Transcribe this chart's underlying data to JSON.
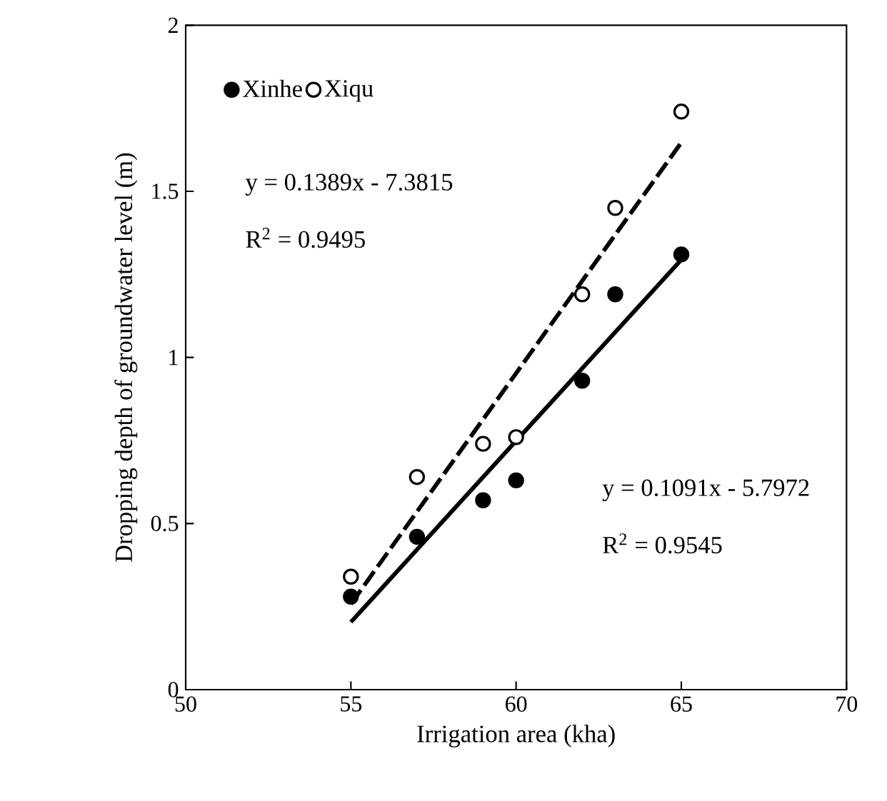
{
  "chart_data": {
    "type": "scatter",
    "xlabel": "Irrigation area (kha)",
    "ylabel": "Dropping depth of groundwater level (m)",
    "xlim": [
      50,
      70
    ],
    "xticks": [
      50,
      55,
      60,
      65,
      70
    ],
    "ylim": [
      0,
      2
    ],
    "yticks": [
      0,
      0.5,
      1,
      1.5,
      2
    ],
    "series": [
      {
        "name": "Xinhe",
        "color": "#000000",
        "marker": "circle",
        "x": [
          55,
          57,
          59,
          60,
          62,
          63,
          65
        ],
        "values": [
          0.28,
          0.46,
          0.57,
          0.63,
          0.93,
          1.19,
          1.31
        ]
      },
      {
        "name": "Xiqu",
        "color": "#ffffff",
        "marker": "circle",
        "x": [
          55,
          57,
          59,
          60,
          62,
          63,
          65
        ],
        "values": [
          0.34,
          0.64,
          0.74,
          0.76,
          1.19,
          1.45,
          1.74
        ]
      },
      {
        "type": "line",
        "color": "#000000",
        "line_style": "solid",
        "marker": "none",
        "x": [
          55,
          65
        ],
        "values": [
          0.2033,
          1.2943
        ]
      },
      {
        "type": "line",
        "color": "#000000",
        "line_style": "dashed",
        "marker": "none",
        "x": [
          55,
          65
        ],
        "values": [
          0.258,
          1.647
        ]
      }
    ],
    "annotations": [
      "y = 0.1389x - 7.3815",
      "R$^{2}$ = 0.9495",
      "y = 0.1091x - 5.7972",
      "R$^{2}$ = 0.9545"
    ],
    "legend": "top left",
    "grid": false
  }
}
